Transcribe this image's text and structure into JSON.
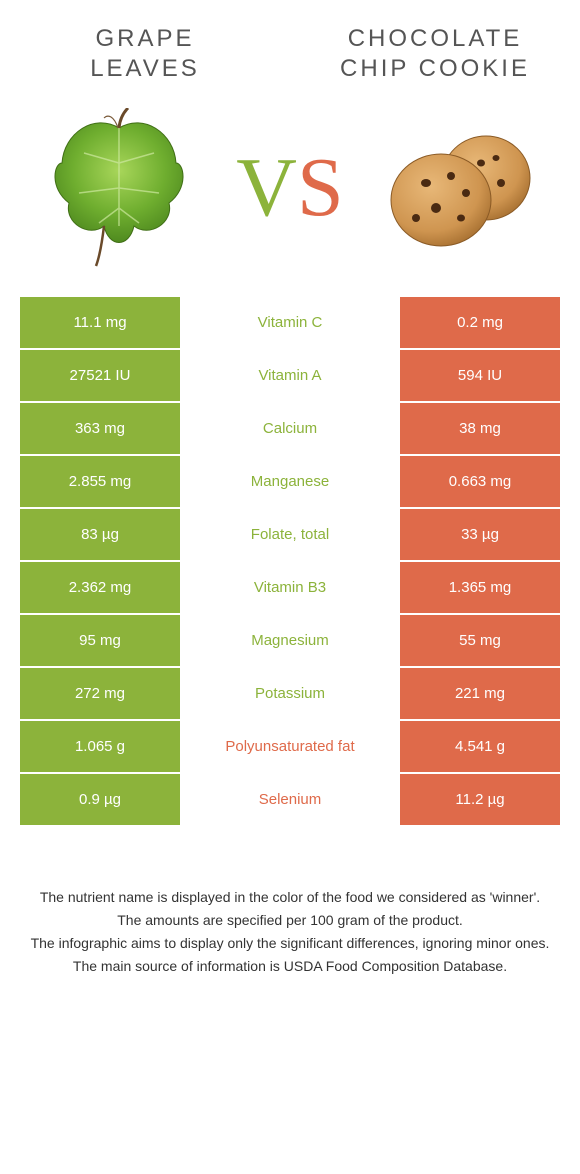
{
  "colors": {
    "left": "#8cb33b",
    "right": "#df6a4a",
    "nutrient_left_winner": "#8cb33b",
    "nutrient_right_winner": "#df6a4a"
  },
  "header": {
    "left_line1": "GRAPE",
    "left_line2": "LEAVES",
    "right_line1": "CHOCOLATE",
    "right_line2": "CHIP COOKIE"
  },
  "vs": {
    "v": "V",
    "s": "S"
  },
  "rows": [
    {
      "left": "11.1 mg",
      "name": "Vitamin C",
      "right": "0.2 mg",
      "winner": "left"
    },
    {
      "left": "27521 IU",
      "name": "Vitamin A",
      "right": "594 IU",
      "winner": "left"
    },
    {
      "left": "363 mg",
      "name": "Calcium",
      "right": "38 mg",
      "winner": "left"
    },
    {
      "left": "2.855 mg",
      "name": "Manganese",
      "right": "0.663 mg",
      "winner": "left"
    },
    {
      "left": "83 µg",
      "name": "Folate, total",
      "right": "33 µg",
      "winner": "left"
    },
    {
      "left": "2.362 mg",
      "name": "Vitamin B3",
      "right": "1.365 mg",
      "winner": "left"
    },
    {
      "left": "95 mg",
      "name": "Magnesium",
      "right": "55 mg",
      "winner": "left"
    },
    {
      "left": "272 mg",
      "name": "Potassium",
      "right": "221 mg",
      "winner": "left"
    },
    {
      "left": "1.065 g",
      "name": "Polyunsaturated fat",
      "right": "4.541 g",
      "winner": "right"
    },
    {
      "left": "0.9 µg",
      "name": "Selenium",
      "right": "11.2 µg",
      "winner": "right"
    }
  ],
  "footer": {
    "l1": "The nutrient name is displayed in the color of the food we considered as 'winner'.",
    "l2": "The amounts are specified per 100 gram of the product.",
    "l3": "The infographic aims to display only the significant differences, ignoring minor ones.",
    "l4": "The main source of information is USDA Food Composition Database."
  }
}
